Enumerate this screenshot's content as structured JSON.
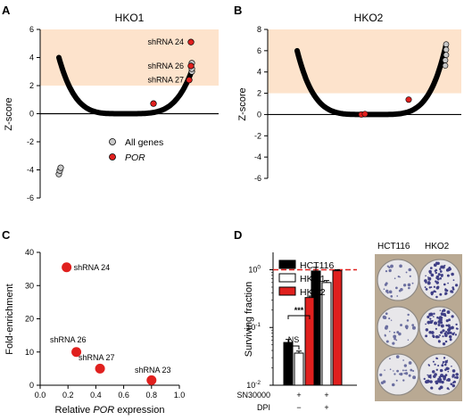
{
  "panel_labels": {
    "a": "A",
    "b": "B",
    "c": "C",
    "d": "D"
  },
  "chart_data": [
    {
      "panel": "A",
      "type": "scatter",
      "title": "HKO1",
      "ylabel": "Z-score",
      "xlabel": "",
      "ylim": [
        -6,
        6
      ],
      "yticks": [
        -6,
        -4,
        -2,
        0,
        2,
        4,
        6
      ],
      "highlight_band": [
        2,
        6
      ],
      "highlight_color": "#fde3cc",
      "legend": [
        {
          "label": "All genes",
          "color": "#c8c8c8"
        },
        {
          "label": "POR",
          "color": "#e0201e"
        }
      ],
      "annotations": [
        {
          "label": "shRNA 24",
          "z": 5.1
        },
        {
          "label": "shRNA 26",
          "z": 3.4
        },
        {
          "label": "shRNA 27",
          "z": 2.4
        }
      ],
      "por_points": [
        0.72,
        2.4,
        3.4,
        5.1
      ]
    },
    {
      "panel": "B",
      "type": "scatter",
      "title": "HKO2",
      "ylabel": "Z-score",
      "xlabel": "",
      "ylim": [
        -6,
        8
      ],
      "yticks": [
        -6,
        -4,
        -2,
        0,
        2,
        4,
        6,
        8
      ],
      "highlight_band": [
        2,
        8
      ],
      "highlight_color": "#fde3cc",
      "por_points": [
        0.0,
        0.05,
        1.4
      ]
    },
    {
      "panel": "C",
      "type": "scatter",
      "xlabel_prefix": "Relative ",
      "xlabel_italic": "POR",
      "xlabel_suffix": " expression",
      "ylabel": "Fold-enrichment",
      "xlim": [
        0,
        1
      ],
      "ylim": [
        0,
        40
      ],
      "xticks": [
        "0.0",
        "0.2",
        "0.4",
        "0.6",
        "0.8",
        "1.0"
      ],
      "yticks": [
        "0",
        "10",
        "20",
        "30",
        "40"
      ],
      "points": [
        {
          "label": "shRNA 24",
          "x": 0.19,
          "y": 35.5
        },
        {
          "label": "shRNA 26",
          "x": 0.26,
          "y": 10.0
        },
        {
          "label": "shRNA 27",
          "x": 0.43,
          "y": 5.0
        },
        {
          "label": "shRNA 23",
          "x": 0.8,
          "y": 1.5
        }
      ],
      "color": "#e0201e"
    },
    {
      "panel": "D",
      "type": "bar",
      "ylabel": "Surviving fraction",
      "yscale": "log",
      "ylim": [
        0.01,
        2
      ],
      "yticks": [
        "10",
        "10",
        "10"
      ],
      "ytick_exponents": [
        "0",
        "-1",
        "-2"
      ],
      "reference_line": 1,
      "groups": [
        {
          "SN30000": "+",
          "DPI": "−"
        },
        {
          "SN30000": "+",
          "DPI": "+"
        }
      ],
      "row_labels": [
        "SN30000",
        "DPI"
      ],
      "series": [
        {
          "name": "HCT116",
          "fill": "#000000",
          "values": [
            0.055,
            0.95
          ],
          "errors": [
            0.007,
            0.15
          ]
        },
        {
          "name": "HKO1",
          "fill": "#ffffff",
          "values": [
            0.036,
            0.6
          ],
          "errors": [
            0.003,
            0.05
          ]
        },
        {
          "name": "HKO2",
          "fill": "#e0201e",
          "values": [
            0.33,
            0.96
          ],
          "errors": [
            0.02,
            0.04
          ]
        }
      ],
      "significance": [
        {
          "label": "***"
        },
        {
          "label": "NS"
        }
      ]
    }
  ],
  "photo": {
    "labels": [
      "HCT116",
      "HKO2"
    ]
  }
}
